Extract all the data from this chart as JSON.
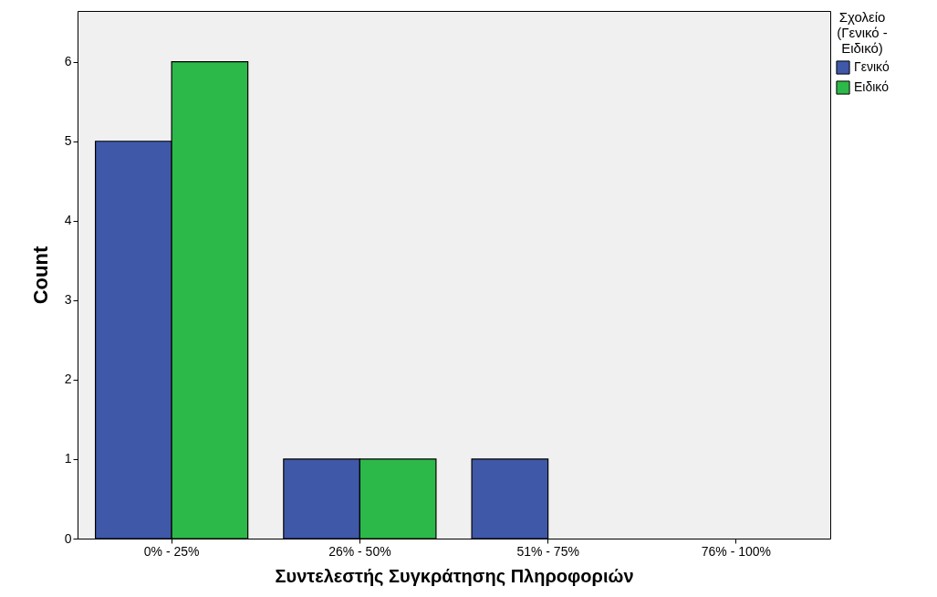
{
  "chart_data": {
    "type": "bar",
    "xlabel": "Συντελεστής Συγκράτησης Πληροφοριών",
    "ylabel": "Count",
    "legend_title": "Σχολείο (Γενικό - Ειδικό)",
    "legend": "top right",
    "categories": [
      "0% - 25%",
      "26% - 50%",
      "51% - 75%",
      "76% - 100%"
    ],
    "series": [
      {
        "name": "Γενικό",
        "color": "#3f58a8",
        "values": [
          5,
          1,
          1,
          0
        ]
      },
      {
        "name": "Ειδικό",
        "color": "#2db84a",
        "values": [
          6,
          1,
          0,
          0
        ]
      }
    ],
    "ylim": [
      0,
      6.64
    ],
    "yticks": [
      0,
      1,
      2,
      3,
      4,
      5,
      6
    ],
    "grid": false
  }
}
